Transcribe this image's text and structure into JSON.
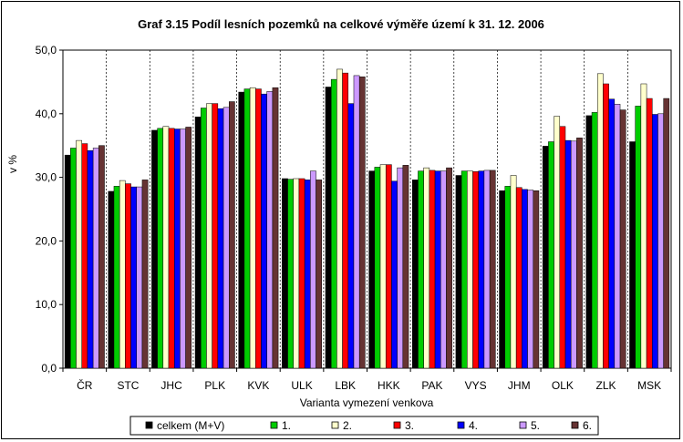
{
  "chart_data": {
    "type": "bar",
    "title": "Graf 3.15 Podíl lesních pozemků na celkové výměře území k 31. 12. 2006",
    "xlabel": "Varianta vymezení venkova",
    "ylabel": "v %",
    "ylim": [
      0,
      50
    ],
    "yticks": [
      "0,0",
      "10,0",
      "20,0",
      "30,0",
      "40,0",
      "50,0"
    ],
    "grid": "vertical-dashed",
    "legend_position": "bottom",
    "categories": [
      "ČR",
      "STC",
      "JHC",
      "PLK",
      "KVK",
      "ULK",
      "LBK",
      "HKK",
      "PAK",
      "VYS",
      "JHM",
      "OLK",
      "ZLK",
      "MSK"
    ],
    "series": [
      {
        "name": "celkem (M+V)",
        "color": "#000000",
        "values": [
          33.5,
          27.8,
          37.4,
          39.5,
          43.4,
          29.8,
          44.2,
          31.0,
          29.6,
          30.3,
          27.9,
          34.9,
          39.7,
          35.6
        ]
      },
      {
        "name": "1.",
        "color": "#00cc00",
        "values": [
          34.6,
          28.6,
          37.7,
          40.9,
          43.9,
          29.7,
          45.4,
          31.6,
          31.0,
          31.0,
          28.6,
          35.6,
          40.2,
          41.2
        ]
      },
      {
        "name": "2.",
        "color": "#ffffcc",
        "values": [
          35.8,
          29.5,
          38.0,
          41.6,
          44.1,
          29.8,
          47.0,
          32.0,
          31.5,
          31.0,
          30.3,
          39.6,
          46.3,
          44.7
        ]
      },
      {
        "name": "3.",
        "color": "#ff0000",
        "values": [
          35.3,
          29.0,
          37.7,
          41.6,
          43.9,
          29.8,
          46.4,
          32.0,
          31.1,
          30.9,
          28.4,
          38.0,
          44.7,
          42.4
        ]
      },
      {
        "name": "4.",
        "color": "#0000ff",
        "values": [
          34.2,
          28.5,
          37.6,
          40.8,
          43.1,
          29.6,
          41.6,
          29.4,
          31.0,
          31.0,
          28.1,
          35.8,
          42.3,
          39.9
        ]
      },
      {
        "name": "5.",
        "color": "#cc99ff",
        "values": [
          34.6,
          28.5,
          37.6,
          41.0,
          43.5,
          31.0,
          46.0,
          31.5,
          31.0,
          31.1,
          28.0,
          35.7,
          41.5,
          40.0
        ]
      },
      {
        "name": "6.",
        "color": "#663333",
        "values": [
          35.0,
          29.6,
          37.9,
          41.9,
          44.1,
          29.6,
          45.8,
          31.9,
          31.5,
          31.1,
          27.9,
          36.2,
          40.6,
          42.4
        ]
      }
    ]
  }
}
